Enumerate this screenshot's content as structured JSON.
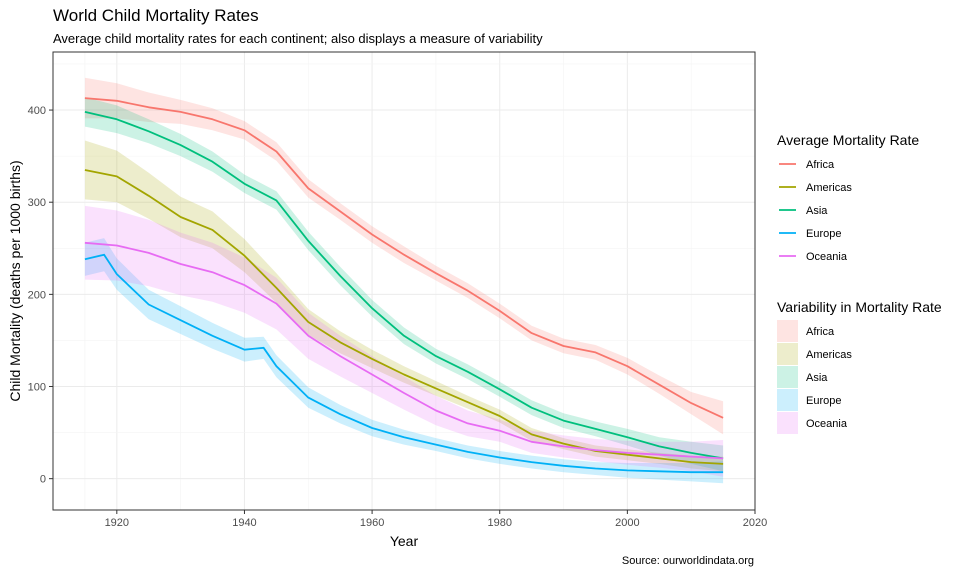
{
  "header": {
    "title": "World Child Mortality Rates",
    "subtitle": "Average child mortality rates for each continent; also displays a measure of variability"
  },
  "caption": "Source: ourworldindata.org",
  "legend": {
    "lines_title": "Average Mortality Rate",
    "bands_title": "Variability in Mortality Rate"
  },
  "chart_data": {
    "type": "line",
    "title": "World Child Mortality Rates",
    "subtitle": "Average child mortality rates for each continent; also displays a measure of variability",
    "xlabel": "Year",
    "ylabel": "Child Mortality (deaths per 1000 births)",
    "xlim": [
      1910,
      2020
    ],
    "ylim": [
      -34,
      463
    ],
    "x_ticks": [
      1920,
      1940,
      1960,
      1980,
      2000,
      2020
    ],
    "y_ticks": [
      0,
      100,
      200,
      300,
      400
    ],
    "grid": true,
    "legend_position": "right",
    "series": [
      {
        "name": "Africa",
        "color": "#F8766D",
        "x": [
          1915,
          1920,
          1925,
          1930,
          1935,
          1940,
          1945,
          1950,
          1955,
          1960,
          1965,
          1970,
          1975,
          1980,
          1985,
          1990,
          1995,
          2000,
          2005,
          2010,
          2015
        ],
        "y": [
          413,
          410,
          403,
          398,
          390,
          378,
          355,
          315,
          290,
          265,
          243,
          223,
          204,
          182,
          158,
          144,
          137,
          122,
          102,
          82,
          66
        ],
        "band_halfwidth": [
          22,
          19,
          16,
          13,
          12,
          10,
          10,
          10,
          9,
          9,
          9,
          8,
          8,
          8,
          8,
          8,
          8,
          9,
          10,
          12,
          18
        ]
      },
      {
        "name": "Americas",
        "color": "#A3A500",
        "x": [
          1915,
          1920,
          1925,
          1930,
          1935,
          1940,
          1945,
          1950,
          1955,
          1960,
          1965,
          1970,
          1975,
          1980,
          1985,
          1990,
          1995,
          2000,
          2005,
          2010,
          2015
        ],
        "y": [
          335,
          328,
          307,
          284,
          270,
          242,
          207,
          170,
          148,
          130,
          113,
          98,
          83,
          68,
          48,
          38,
          30,
          26,
          22,
          18,
          16
        ],
        "band_halfwidth": [
          32,
          28,
          25,
          22,
          20,
          18,
          16,
          14,
          12,
          10,
          9,
          8,
          7,
          7,
          7,
          6,
          6,
          6,
          6,
          7,
          8
        ]
      },
      {
        "name": "Asia",
        "color": "#00BF7D",
        "x": [
          1915,
          1920,
          1925,
          1930,
          1935,
          1940,
          1945,
          1950,
          1955,
          1960,
          1965,
          1970,
          1975,
          1980,
          1985,
          1990,
          1995,
          2000,
          2005,
          2010,
          2015
        ],
        "y": [
          398,
          390,
          377,
          362,
          344,
          320,
          302,
          258,
          220,
          185,
          155,
          133,
          116,
          97,
          77,
          63,
          54,
          45,
          35,
          28,
          22
        ],
        "band_halfwidth": [
          16,
          15,
          13,
          12,
          11,
          10,
          10,
          10,
          10,
          9,
          9,
          8,
          8,
          8,
          8,
          8,
          8,
          9,
          10,
          12,
          14
        ]
      },
      {
        "name": "Europe",
        "color": "#00B0F6",
        "x": [
          1915,
          1918,
          1920,
          1925,
          1930,
          1935,
          1940,
          1943,
          1945,
          1950,
          1955,
          1960,
          1965,
          1970,
          1975,
          1980,
          1985,
          1990,
          1995,
          2000,
          2005,
          2010,
          2015
        ],
        "y": [
          238,
          243,
          222,
          189,
          172,
          155,
          140,
          142,
          122,
          88,
          70,
          55,
          45,
          37,
          29,
          23,
          18,
          14,
          11,
          9,
          8,
          7,
          7
        ],
        "band_halfwidth": [
          18,
          18,
          17,
          16,
          15,
          14,
          13,
          12,
          12,
          11,
          10,
          9,
          8,
          7,
          7,
          7,
          7,
          7,
          7,
          8,
          9,
          10,
          12
        ]
      },
      {
        "name": "Oceania",
        "color": "#E76BF3",
        "x": [
          1915,
          1920,
          1925,
          1930,
          1935,
          1940,
          1945,
          1950,
          1955,
          1960,
          1965,
          1970,
          1975,
          1980,
          1985,
          1990,
          1995,
          2000,
          2005,
          2010,
          2015
        ],
        "y": [
          256,
          253,
          245,
          233,
          224,
          210,
          190,
          155,
          133,
          113,
          93,
          74,
          60,
          52,
          40,
          35,
          31,
          28,
          26,
          24,
          22
        ],
        "band_halfwidth": [
          40,
          38,
          36,
          34,
          32,
          30,
          28,
          25,
          22,
          20,
          18,
          16,
          14,
          12,
          12,
          12,
          12,
          13,
          14,
          16,
          20
        ]
      }
    ]
  }
}
